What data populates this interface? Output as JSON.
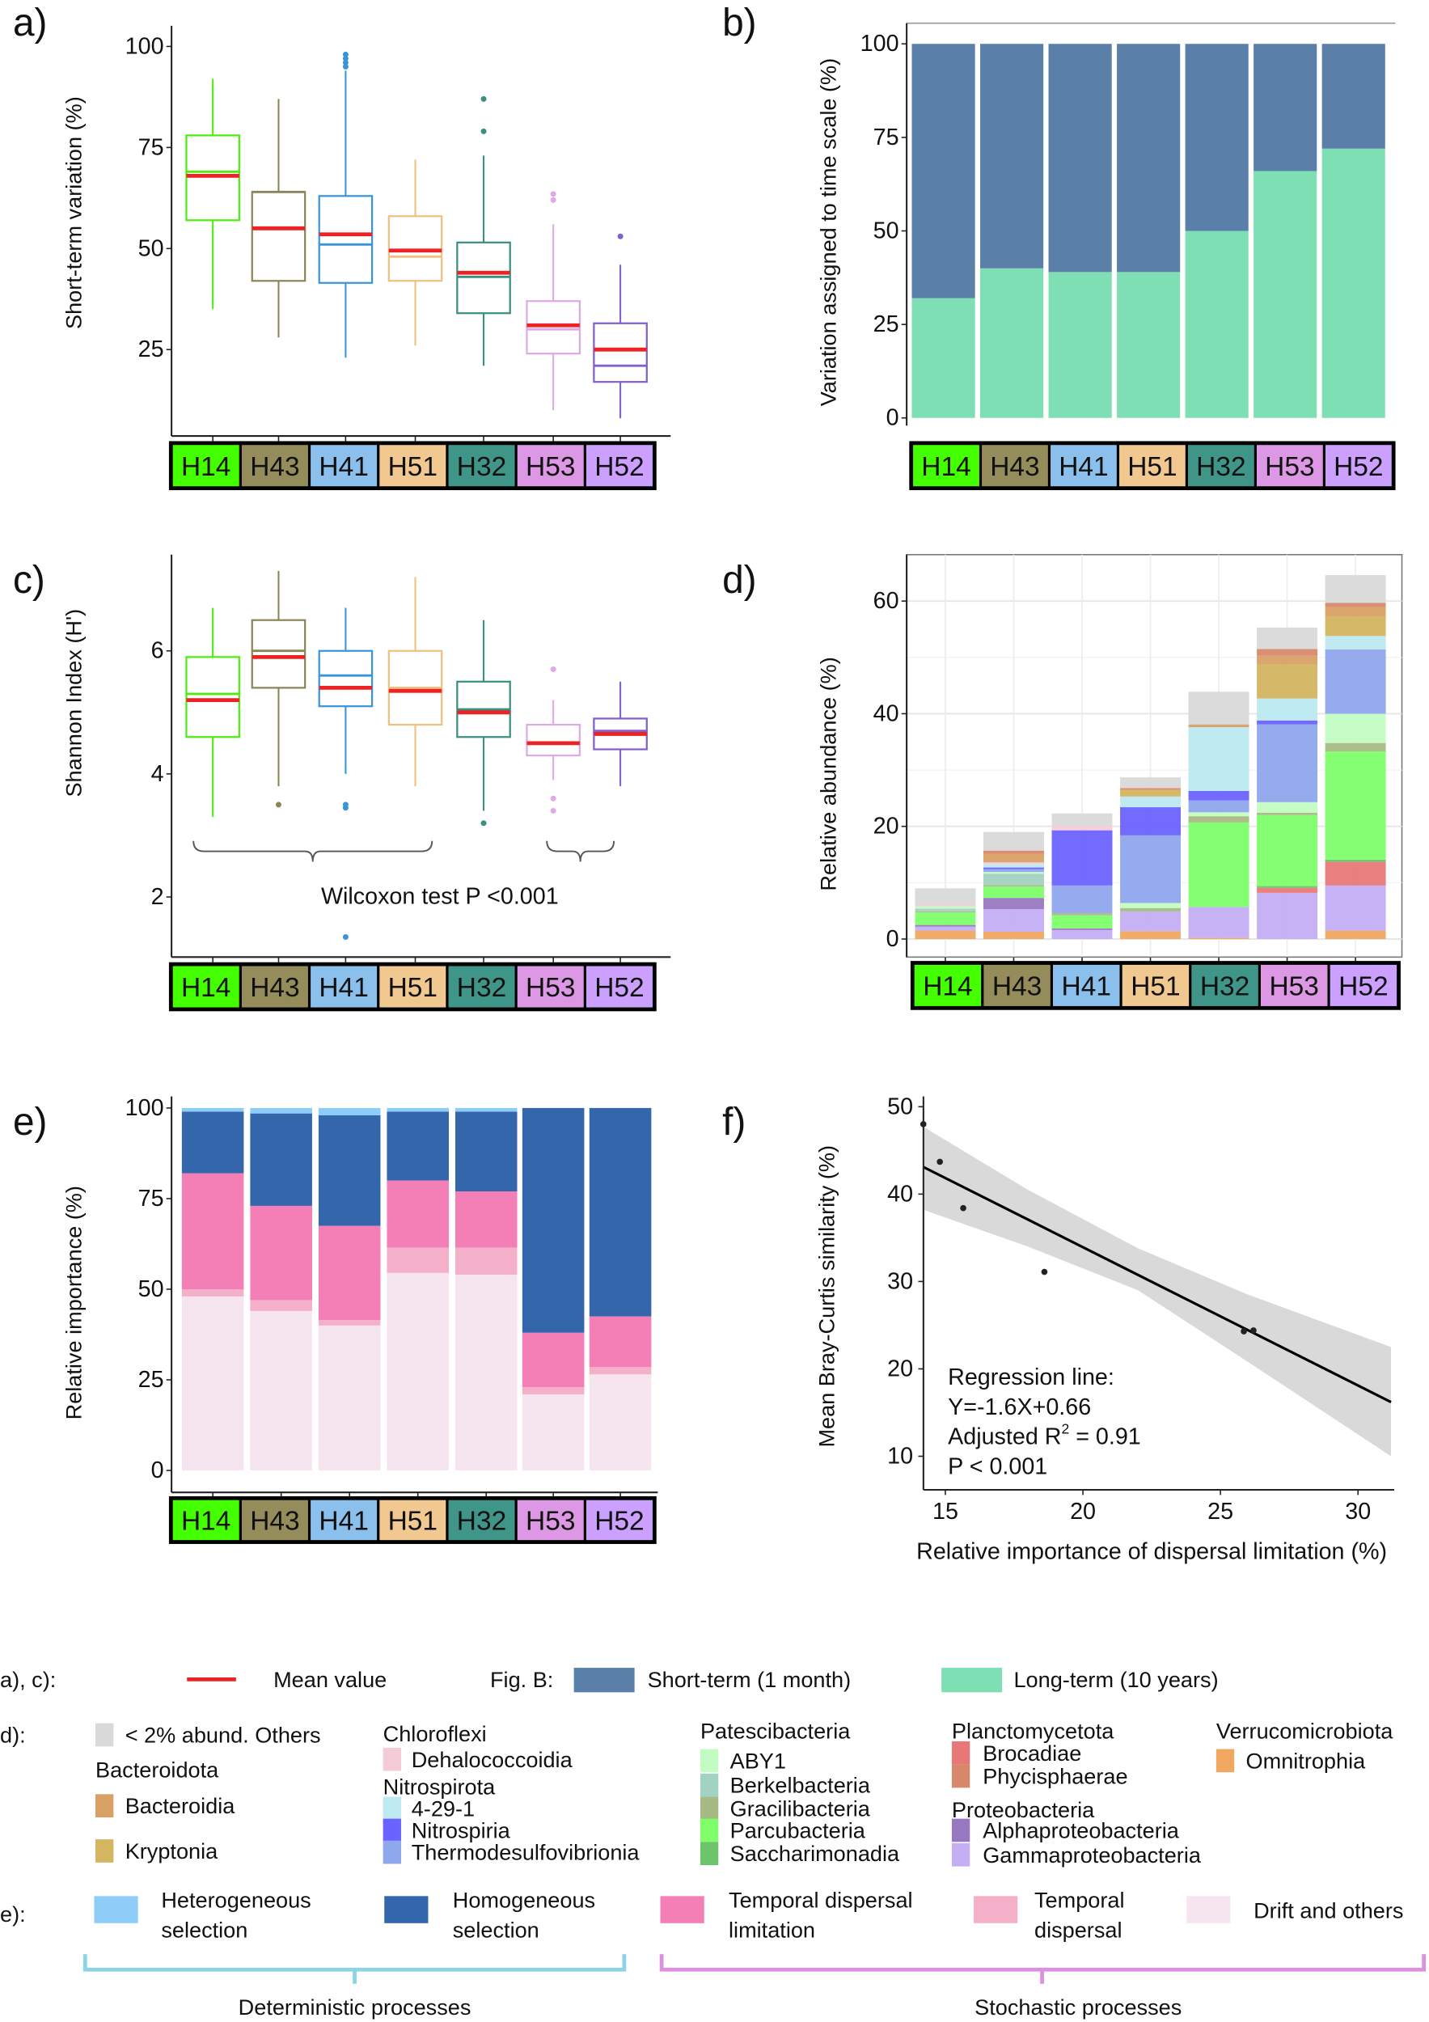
{
  "panel_labels": [
    "a)",
    "b)",
    "c)",
    "d)",
    "e)",
    "f)"
  ],
  "groups": [
    "H14",
    "H43",
    "H41",
    "H51",
    "H32",
    "H53",
    "H52"
  ],
  "group_colors": {
    "stroke": [
      "#4cee10",
      "#8b8658",
      "#3a95d8",
      "#f0c080",
      "#3a9080",
      "#e0a8e8",
      "#8060d0"
    ],
    "strip": [
      "#44ff00",
      "#948c5a",
      "#8cc0ec",
      "#f0c890",
      "#3f9688",
      "#dc98e4",
      "#cca0ff"
    ]
  },
  "mean_color": "#ee2222",
  "chart_data": [
    {
      "panel": "a)",
      "type": "box",
      "ylabel": "Short-term variation (%)",
      "yticks": [
        25,
        50,
        75,
        100
      ],
      "categories": [
        "H14",
        "H43",
        "H41",
        "H51",
        "H32",
        "H53",
        "H52"
      ],
      "boxes": [
        {
          "low": 35,
          "q1": 57,
          "median": 69,
          "q3": 78,
          "high": 92,
          "mean": 68,
          "outliers": []
        },
        {
          "low": 28,
          "q1": 42,
          "median": 64,
          "q3": 64,
          "high": 87,
          "mean": 55,
          "outliers": []
        },
        {
          "low": 23,
          "q1": 41.5,
          "median": 51,
          "q3": 63,
          "high": 94,
          "mean": 53.5,
          "outliers": [
            95,
            96,
            97,
            98
          ]
        },
        {
          "low": 26,
          "q1": 42,
          "median": 48,
          "q3": 58,
          "high": 72,
          "mean": 49.5,
          "outliers": []
        },
        {
          "low": 21,
          "q1": 34,
          "median": 43,
          "q3": 51.5,
          "high": 73,
          "mean": 44,
          "outliers": [
            79,
            87
          ]
        },
        {
          "low": 10,
          "q1": 24,
          "median": 30,
          "q3": 37,
          "high": 56,
          "mean": 31,
          "outliers": [
            62,
            63.5
          ]
        },
        {
          "low": 8,
          "q1": 17,
          "median": 21,
          "q3": 31.5,
          "high": 46,
          "mean": 25,
          "outliers": [
            53
          ]
        }
      ]
    },
    {
      "panel": "b)",
      "type": "bar",
      "stacked": true,
      "ylabel": "Variation assigned to time scale (%)",
      "yticks": [
        0,
        25,
        50,
        75,
        100
      ],
      "categories": [
        "H14",
        "H43",
        "H41",
        "H51",
        "H32",
        "H53",
        "H52"
      ],
      "series": [
        {
          "name": "Long-term (10 years)",
          "color": "#7fdfb4",
          "values": [
            32,
            40,
            39,
            39,
            50,
            66,
            72
          ]
        },
        {
          "name": "Short-term (1 month)",
          "color": "#5a7fa8",
          "values": [
            68,
            60,
            61,
            61,
            50,
            34,
            28
          ]
        }
      ]
    },
    {
      "panel": "c)",
      "type": "box",
      "ylabel": "Shannon Index (H')",
      "yticks": [
        2,
        4,
        6
      ],
      "categories": [
        "H14",
        "H43",
        "H41",
        "H51",
        "H32",
        "H53",
        "H52"
      ],
      "annotation": "Wilcoxon test P <0.001",
      "boxes": [
        {
          "low": 3.3,
          "q1": 4.6,
          "median": 5.3,
          "q3": 5.9,
          "high": 6.7,
          "mean": 5.2,
          "outliers": []
        },
        {
          "low": 3.8,
          "q1": 5.4,
          "median": 6.0,
          "q3": 6.5,
          "high": 7.3,
          "mean": 5.9,
          "outliers": [
            3.5
          ]
        },
        {
          "low": 4.0,
          "q1": 5.1,
          "median": 5.6,
          "q3": 6.0,
          "high": 6.7,
          "mean": 5.4,
          "outliers": [
            3.5,
            3.45,
            1.35
          ]
        },
        {
          "low": 3.8,
          "q1": 4.8,
          "median": 5.4,
          "q3": 6.0,
          "high": 7.2,
          "mean": 5.35,
          "outliers": []
        },
        {
          "low": 3.4,
          "q1": 4.6,
          "median": 5.05,
          "q3": 5.5,
          "high": 6.5,
          "mean": 5.0,
          "outliers": [
            3.2
          ]
        },
        {
          "low": 3.9,
          "q1": 4.3,
          "median": 4.5,
          "q3": 4.8,
          "high": 5.2,
          "mean": 4.5,
          "outliers": [
            5.7,
            3.6,
            3.4
          ]
        },
        {
          "low": 3.8,
          "q1": 4.4,
          "median": 4.7,
          "q3": 4.9,
          "high": 5.5,
          "mean": 4.65,
          "outliers": []
        }
      ]
    },
    {
      "panel": "d)",
      "type": "bar",
      "stacked": true,
      "ylabel": "Relative abundance (%)",
      "yticks": [
        0,
        20,
        40,
        60
      ],
      "grid": true,
      "categories": [
        "H14",
        "H43",
        "H41",
        "H51",
        "H32",
        "H53",
        "H52"
      ],
      "series": [
        {
          "name": "Omnitrophia",
          "color": "#f0a860",
          "values": [
            1.5,
            1.3,
            0,
            1.4,
            0.2,
            0,
            1.5
          ]
        },
        {
          "name": "Gammaproteobacteria",
          "color": "#c4aef4",
          "values": [
            0.7,
            4,
            1.6,
            3.5,
            5.5,
            8.2,
            8
          ]
        },
        {
          "name": "Alphaproteobacteria",
          "color": "#9878c0",
          "values": [
            0.3,
            2,
            0.3,
            0,
            0,
            0,
            0
          ]
        },
        {
          "name": "Brocadiae",
          "color": "#e87878",
          "values": [
            0,
            0,
            0,
            0,
            0,
            0.9,
            4.2
          ]
        },
        {
          "name": "Saccharimonadia",
          "color": "#6cc46a",
          "values": [
            0,
            0,
            0,
            0,
            0,
            0.3,
            0.4
          ]
        },
        {
          "name": "Parcubacteria",
          "color": "#7eff6a",
          "values": [
            2.2,
            2,
            2.3,
            0,
            15,
            12.6,
            19.2
          ]
        },
        {
          "name": "Gracilibacteria",
          "color": "#a8ba84",
          "values": [
            0.2,
            0.3,
            0.4,
            0.6,
            1.1,
            0.4,
            1.5
          ]
        },
        {
          "name": "Berkelbacteria",
          "color": "#a2d2c2",
          "values": [
            0.5,
            2,
            0,
            0,
            0,
            0,
            0
          ]
        },
        {
          "name": "ABY1",
          "color": "#c3fcc3",
          "values": [
            0.4,
            0.3,
            0,
            0.9,
            0.7,
            1.9,
            5.2
          ]
        },
        {
          "name": "Thermodesulfovibrionia",
          "color": "#8fa7ec",
          "values": [
            0,
            0.5,
            4.9,
            12,
            2.1,
            13.8,
            11.4
          ]
        },
        {
          "name": "Nitrospiria",
          "color": "#6b63ff",
          "values": [
            0,
            0.3,
            9.8,
            5,
            1.7,
            0.7,
            0
          ]
        },
        {
          "name": "4-29-1",
          "color": "#bde9f1",
          "values": [
            0,
            0.6,
            0,
            1.9,
            11.3,
            3.9,
            2.4
          ]
        },
        {
          "name": "Dehalococcoidia",
          "color": "#f4ccd8",
          "values": [
            0.3,
            0.3,
            0.8,
            0,
            0,
            0,
            0
          ]
        },
        {
          "name": "Kryptonia",
          "color": "#d4b560",
          "values": [
            0,
            0,
            0,
            1.2,
            0,
            6,
            3.5
          ]
        },
        {
          "name": "Bacteroidia",
          "color": "#d9a066",
          "values": [
            0,
            1.5,
            0,
            0,
            0.5,
            1.6,
            1.6
          ]
        },
        {
          "name": "Phycisphaerae",
          "color": "#d8886a",
          "values": [
            0,
            0.6,
            0,
            0.3,
            0,
            1.2,
            0.8
          ]
        },
        {
          "name": "< 2% abund. Others",
          "color": "#d9d9d9",
          "values": [
            2.9,
            3.3,
            2.2,
            1.9,
            5.8,
            3.8,
            4.9
          ]
        }
      ]
    },
    {
      "panel": "e)",
      "type": "bar",
      "stacked": true,
      "ylabel": "Relative importance (%)",
      "yticks": [
        0,
        25,
        50,
        75,
        100
      ],
      "categories": [
        "H14",
        "H43",
        "H41",
        "H51",
        "H32",
        "H53",
        "H52"
      ],
      "series": [
        {
          "name": "Drift and others",
          "color": "#f6e4ef",
          "values": [
            48,
            44,
            40,
            54.5,
            54,
            21,
            26.5
          ]
        },
        {
          "name": "Temporal dispersal",
          "color": "#f4b0c8",
          "values": [
            2,
            3,
            1.5,
            7,
            7.5,
            2,
            2
          ]
        },
        {
          "name": "Temporal dispersal limitation",
          "color": "#f47eb6",
          "values": [
            32,
            26,
            26,
            18.5,
            15.5,
            15,
            14
          ]
        },
        {
          "name": "Homogeneous selection",
          "color": "#3466ac",
          "values": [
            17,
            25.5,
            30.5,
            19,
            22,
            62,
            57.5
          ]
        },
        {
          "name": "Heterogeneous selection",
          "color": "#8ecdf8",
          "values": [
            1,
            1.5,
            2,
            1,
            1,
            0,
            0
          ]
        }
      ]
    },
    {
      "panel": "f)",
      "type": "scatter",
      "xlabel": "Relative importance of dispersal limitation (%)",
      "ylabel": "Mean Bray-Curtis similarity (%)",
      "xticks": [
        15,
        20,
        25,
        30
      ],
      "yticks": [
        10,
        20,
        30,
        40,
        50
      ],
      "points": [
        {
          "x": 14.2,
          "y": 48
        },
        {
          "x": 14.8,
          "y": 43.7
        },
        {
          "x": 15.65,
          "y": 38.4
        },
        {
          "x": 18.6,
          "y": 31.1
        },
        {
          "x": 25.85,
          "y": 24.3
        },
        {
          "x": 26.2,
          "y": 24.4
        }
      ],
      "regression": {
        "x": [
          14.2,
          31.2
        ],
        "y": [
          43.1,
          16.2
        ]
      },
      "confidence_band": {
        "x": [
          14.2,
          18,
          22,
          26,
          31.2
        ],
        "upper": [
          47.7,
          40.5,
          33.8,
          28.5,
          22.5
        ],
        "lower": [
          38.2,
          34,
          29,
          20.8,
          10
        ]
      },
      "annotation": {
        "line1": "Regression line:",
        "line2": "Y=-1.6X+0.66",
        "line3_a": "Adjusted R",
        "line3_sup": "2",
        "line3_b": " = 0.91",
        "line4": "P < 0.001"
      }
    }
  ],
  "legend": {
    "ac": {
      "label": "a), c):",
      "mean": "Mean value"
    },
    "b": {
      "label": "Fig. B:",
      "short": "Short-term (1 month)",
      "long": "Long-term (10 years)"
    },
    "d": {
      "label": "d):",
      "others": "< 2% abund. Others",
      "bacteroidota": "Bacteroidota",
      "bacteroidia": "Bacteroidia",
      "kryptonia": "Kryptonia",
      "chloroflexi": "Chloroflexi",
      "dehalococcoidia": "Dehalococcoidia",
      "nitrospirota": "Nitrospirota",
      "n4291": "4-29-1",
      "nitrospiria": "Nitrospiria",
      "thermo": "Thermodesulfovibrionia",
      "patescibacteria": "Patescibacteria",
      "aby1": "ABY1",
      "berkelbacteria": "Berkelbacteria",
      "gracilibacteria": "Gracilibacteria",
      "parcubacteria": "Parcubacteria",
      "saccharimonadia": "Saccharimonadia",
      "planctomycetota": "Planctomycetota",
      "brocadiae": "Brocadiae",
      "phycisphaerae": "Phycisphaerae",
      "proteobacteria": "Proteobacteria",
      "alpha": "Alphaproteobacteria",
      "gamma": "Gammaproteobacteria",
      "verrucomicrobiota": "Verrucomicrobiota",
      "omnitrophia": "Omnitrophia"
    },
    "e": {
      "label": "e):",
      "het_1": "Heterogeneous",
      "het_2": "selection",
      "hom_1": "Homogeneous",
      "hom_2": "selection",
      "tdl_1": "Temporal dispersal",
      "tdl_2": "limitation",
      "td_1": "Temporal",
      "td_2": "dispersal",
      "drift": "Drift and others",
      "deterministic": "Deterministic processes",
      "stochastic": "Stochastic processes",
      "deterministic_color": "#8dd3e6",
      "stochastic_color": "#dd90e0"
    }
  }
}
